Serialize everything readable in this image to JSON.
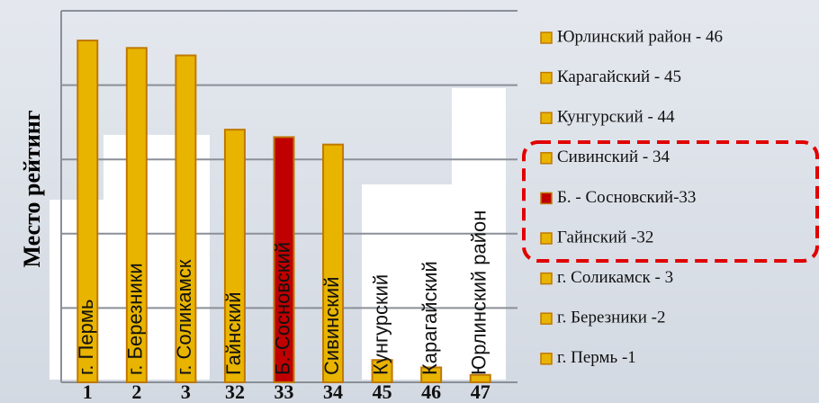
{
  "chart_data": {
    "type": "bar",
    "y_label": "Место рейтинг",
    "categories": [
      "1",
      "2",
      "3",
      "32",
      "33",
      "34",
      "45",
      "46",
      "47"
    ],
    "bar_labels": [
      "г. Пермь",
      "г. Березники",
      "г. Соликамск",
      "Гайнский",
      "Б.-Сосновский",
      "Сивинский",
      "Кунгурский",
      "Карагайский",
      "Юрлинский район"
    ],
    "values": [
      46,
      45,
      44,
      34,
      33,
      32,
      3,
      2,
      1
    ],
    "colors": [
      "#e8b400",
      "#e8b400",
      "#e8b400",
      "#e8b400",
      "#c00000",
      "#e8b400",
      "#e8b400",
      "#e8b400",
      "#e8b400"
    ],
    "ylim": [
      0,
      50
    ],
    "yticks": [
      0,
      10,
      20,
      30,
      40,
      50
    ],
    "grid": true,
    "legend": [
      {
        "name": "Юрлинский район - 46",
        "color": "#e8b400"
      },
      {
        "name": "Карагайский - 45",
        "color": "#e8b400"
      },
      {
        "name": "Кунгурский - 44",
        "color": "#e8b400"
      },
      {
        "name": "Сивинский - 34",
        "color": "#e8b400"
      },
      {
        "name": "Б. - Сосновский-33",
        "color": "#c00000"
      },
      {
        "name": "Гайнский -32",
        "color": "#e8b400"
      },
      {
        "name": "г. Соликамск - 3",
        "color": "#e8b400"
      },
      {
        "name": "г. Березники -2",
        "color": "#e8b400"
      },
      {
        "name": "г. Пермь -1",
        "color": "#e8b400"
      }
    ]
  }
}
